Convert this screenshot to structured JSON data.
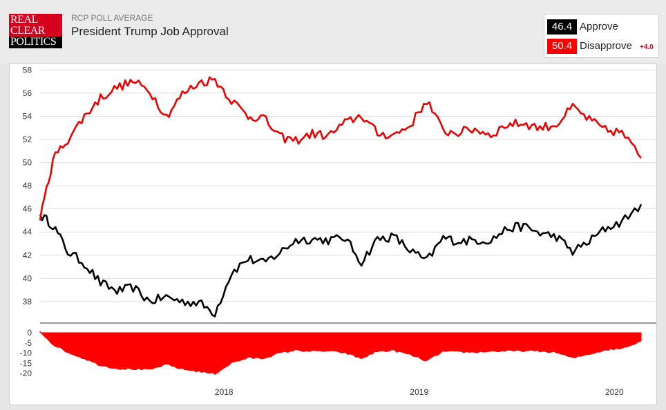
{
  "header": {
    "logo": {
      "line1": "REAL",
      "line2": "CLEAR",
      "line3": "POLITICS"
    },
    "kicker": "RCP POLL AVERAGE",
    "title": "President Trump Job Approval"
  },
  "legend": {
    "approve": {
      "value": "46.4",
      "label": "Approve",
      "color": "#000000"
    },
    "disapprove": {
      "value": "50.4",
      "label": "Disapprove",
      "color": "#ff0000",
      "spread": "+4.0"
    }
  },
  "colors": {
    "approve": "#000000",
    "disapprove": "#ee0000",
    "spread_fill": "#ff0000",
    "grid": "#dddddd"
  },
  "chart_data": [
    {
      "type": "line",
      "title": "President Trump Job Approval",
      "xlabel": "",
      "ylabel": "",
      "x_ticks": [
        "2018",
        "2019",
        "2020"
      ],
      "y_ticks": [
        38,
        40,
        42,
        44,
        46,
        48,
        50,
        52,
        54,
        56,
        58
      ],
      "ylim": [
        36.5,
        58.5
      ],
      "xlim": [
        "2017-01-22",
        "2020-02-20"
      ],
      "grid": true,
      "x": [
        "2017-01-22",
        "2017-02-15",
        "2017-03-15",
        "2017-04-15",
        "2017-05-15",
        "2017-06-15",
        "2017-07-15",
        "2017-08-15",
        "2017-09-15",
        "2017-10-15",
        "2017-11-15",
        "2017-12-15",
        "2018-01-15",
        "2018-02-15",
        "2018-03-15",
        "2018-04-15",
        "2018-05-15",
        "2018-06-15",
        "2018-07-15",
        "2018-08-15",
        "2018-09-15",
        "2018-10-15",
        "2018-11-15",
        "2018-12-15",
        "2019-01-15",
        "2019-02-15",
        "2019-03-15",
        "2019-04-15",
        "2019-05-15",
        "2019-06-15",
        "2019-07-15",
        "2019-08-15",
        "2019-09-15",
        "2019-10-15",
        "2019-11-15",
        "2019-12-15",
        "2020-01-15",
        "2020-02-20"
      ],
      "series": [
        {
          "name": "Approve",
          "color": "#000000",
          "values": [
            45.5,
            44.6,
            42.3,
            41.3,
            39.6,
            38.9,
            39.2,
            38.0,
            38.4,
            38.0,
            37.9,
            37.0,
            40.5,
            41.7,
            41.3,
            42.2,
            43.3,
            43.4,
            43.3,
            43.5,
            41.4,
            43.4,
            43.6,
            42.4,
            41.5,
            43.5,
            43.2,
            43.3,
            43.3,
            44.3,
            44.5,
            43.9,
            43.6,
            42.3,
            43.2,
            44.3,
            44.9,
            46.4
          ]
        },
        {
          "name": "Disapprove",
          "color": "#ee0000",
          "values": [
            45.0,
            50.3,
            52.0,
            54.0,
            55.6,
            56.5,
            57.0,
            56.2,
            54.0,
            55.9,
            56.9,
            57.2,
            55.4,
            54.0,
            53.9,
            52.2,
            51.9,
            52.5,
            52.3,
            53.4,
            54.1,
            52.5,
            52.4,
            53.2,
            55.4,
            52.7,
            52.6,
            52.9,
            52.4,
            53.3,
            53.4,
            53.0,
            53.3,
            54.8,
            53.7,
            52.8,
            52.6,
            50.4
          ]
        }
      ]
    },
    {
      "type": "area",
      "title": "",
      "y_ticks": [
        0,
        -5,
        -10,
        -15,
        -20
      ],
      "ylim": [
        -21,
        0
      ],
      "series": [
        {
          "name": "",
          "color": "#ff0000",
          "values": [
            0.5,
            -5.7,
            -9.7,
            -12.7,
            -16.0,
            -17.6,
            -17.8,
            -18.2,
            -15.6,
            -17.9,
            -19.0,
            -20.2,
            -14.9,
            -12.3,
            -12.6,
            -10.0,
            -8.6,
            -9.1,
            -9.0,
            -9.9,
            -12.7,
            -9.1,
            -8.8,
            -10.8,
            -13.9,
            -9.2,
            -9.4,
            -9.6,
            -9.1,
            -9.0,
            -8.9,
            -9.1,
            -9.7,
            -12.5,
            -10.5,
            -8.5,
            -7.7,
            -4.0
          ]
        }
      ]
    }
  ]
}
